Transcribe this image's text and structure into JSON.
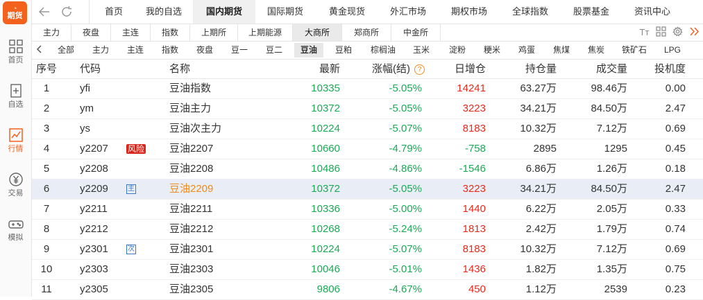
{
  "sidebar": {
    "logo_text": "期货",
    "items": [
      {
        "label": "首页",
        "icon": "grid-icon",
        "active": false
      },
      {
        "label": "自选",
        "icon": "watchlist-icon",
        "active": false
      },
      {
        "label": "行情",
        "icon": "chart-icon",
        "active": true
      },
      {
        "label": "交易",
        "icon": "yen-icon",
        "active": false
      },
      {
        "label": "模拟",
        "icon": "gamepad-icon",
        "active": false
      }
    ]
  },
  "top_nav": {
    "tabs": [
      {
        "label": "首页",
        "active": false
      },
      {
        "label": "我的自选",
        "active": false
      },
      {
        "label": "国内期货",
        "active": true
      },
      {
        "label": "国际期货",
        "active": false
      },
      {
        "label": "黄金现货",
        "active": false
      },
      {
        "label": "外汇市场",
        "active": false
      },
      {
        "label": "期权市场",
        "active": false
      },
      {
        "label": "全球指数",
        "active": false
      },
      {
        "label": "股票基金",
        "active": false
      },
      {
        "label": "资讯中心",
        "active": false
      }
    ]
  },
  "sub_tabs": [
    {
      "label": "主力",
      "active": false
    },
    {
      "label": "夜盘",
      "active": false
    },
    {
      "label": "主连",
      "active": false
    },
    {
      "label": "指数",
      "active": false
    },
    {
      "label": "上期所",
      "active": false
    },
    {
      "label": "上期能源",
      "active": false
    },
    {
      "label": "大商所",
      "active": true
    },
    {
      "label": "郑商所",
      "active": false
    },
    {
      "label": "中金所",
      "active": false
    }
  ],
  "toolbar_icons": {
    "font": "Tт",
    "layout": "grid-icon",
    "settings": "gear-icon",
    "more": "double-chevron-icon"
  },
  "category_tabs": [
    {
      "label": "全部",
      "active": false
    },
    {
      "label": "主力",
      "active": false
    },
    {
      "label": "主连",
      "active": false
    },
    {
      "label": "指数",
      "active": false
    },
    {
      "label": "夜盘",
      "active": false
    },
    {
      "label": "豆一",
      "active": false
    },
    {
      "label": "豆二",
      "active": false
    },
    {
      "label": "豆油",
      "active": true
    },
    {
      "label": "豆粕",
      "active": false
    },
    {
      "label": "棕榈油",
      "active": false
    },
    {
      "label": "玉米",
      "active": false
    },
    {
      "label": "淀粉",
      "active": false
    },
    {
      "label": "粳米",
      "active": false
    },
    {
      "label": "鸡蛋",
      "active": false
    },
    {
      "label": "焦煤",
      "active": false
    },
    {
      "label": "焦炭",
      "active": false
    },
    {
      "label": "铁矿石",
      "active": false
    },
    {
      "label": "LPG",
      "active": false
    }
  ],
  "table": {
    "headers": {
      "seq": "序号",
      "code": "代码",
      "name": "名称",
      "last": "最新",
      "change": "涨幅(结)",
      "oi_change": "日增仓",
      "open_interest": "持仓量",
      "volume": "成交量",
      "speculation": "投机度"
    },
    "rows": [
      {
        "seq": "1",
        "code": "yfi",
        "tag": "",
        "name": "豆油指数",
        "last": "10335",
        "change": "-5.05%",
        "oi_change": "14241",
        "open_interest": "63.27万",
        "volume": "98.46万",
        "speculation": "0.00"
      },
      {
        "seq": "2",
        "code": "ym",
        "tag": "",
        "name": "豆油主力",
        "last": "10372",
        "change": "-5.05%",
        "oi_change": "3223",
        "open_interest": "34.21万",
        "volume": "84.50万",
        "speculation": "2.47"
      },
      {
        "seq": "3",
        "code": "ys",
        "tag": "",
        "name": "豆油次主力",
        "last": "10224",
        "change": "-5.07%",
        "oi_change": "8183",
        "open_interest": "10.32万",
        "volume": "7.12万",
        "speculation": "0.69"
      },
      {
        "seq": "4",
        "code": "y2207",
        "tag": "风险",
        "name": "豆油2207",
        "last": "10660",
        "change": "-4.79%",
        "oi_change": "-758",
        "open_interest": "2895",
        "volume": "1295",
        "speculation": "0.45"
      },
      {
        "seq": "5",
        "code": "y2208",
        "tag": "",
        "name": "豆油2208",
        "last": "10486",
        "change": "-4.86%",
        "oi_change": "-1546",
        "open_interest": "6.86万",
        "volume": "1.26万",
        "speculation": "0.18"
      },
      {
        "seq": "6",
        "code": "y2209",
        "tag": "主",
        "name": "豆油2209",
        "last": "10372",
        "change": "-5.05%",
        "oi_change": "3223",
        "open_interest": "34.21万",
        "volume": "84.50万",
        "speculation": "2.47",
        "selected": true
      },
      {
        "seq": "7",
        "code": "y2211",
        "tag": "",
        "name": "豆油2211",
        "last": "10336",
        "change": "-5.00%",
        "oi_change": "1440",
        "open_interest": "6.22万",
        "volume": "2.05万",
        "speculation": "0.33"
      },
      {
        "seq": "8",
        "code": "y2212",
        "tag": "",
        "name": "豆油2212",
        "last": "10268",
        "change": "-5.24%",
        "oi_change": "1813",
        "open_interest": "2.42万",
        "volume": "1.79万",
        "speculation": "0.74"
      },
      {
        "seq": "9",
        "code": "y2301",
        "tag": "次",
        "name": "豆油2301",
        "last": "10224",
        "change": "-5.07%",
        "oi_change": "8183",
        "open_interest": "10.32万",
        "volume": "7.12万",
        "speculation": "0.69"
      },
      {
        "seq": "10",
        "code": "y2303",
        "tag": "",
        "name": "豆油2303",
        "last": "10046",
        "change": "-5.01%",
        "oi_change": "1436",
        "open_interest": "1.82万",
        "volume": "1.35万",
        "speculation": "0.75"
      },
      {
        "seq": "11",
        "code": "y2305",
        "tag": "",
        "name": "豆油2305",
        "last": "9806",
        "change": "-4.67%",
        "oi_change": "450",
        "open_interest": "1.12万",
        "volume": "2539",
        "speculation": "0.23"
      }
    ]
  },
  "colors": {
    "accent": "#f3611d",
    "up": "#e8291c",
    "down": "#1aaa55",
    "selected_row": "#e9eef6",
    "selected_name": "#f08a1a"
  }
}
